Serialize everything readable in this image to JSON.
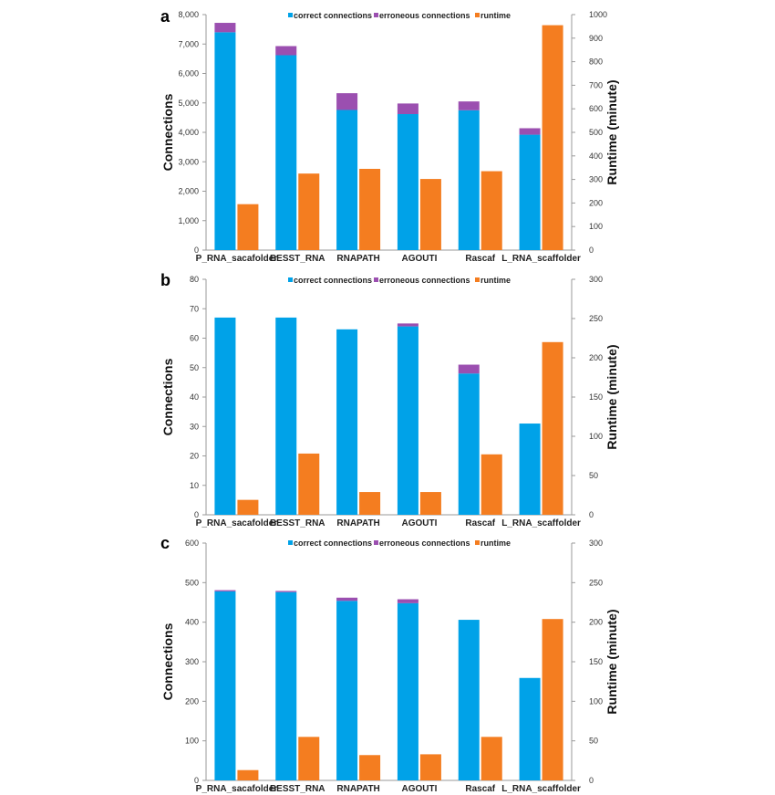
{
  "colors": {
    "correct": "#00a2e8",
    "erroneous": "#9b4fb0",
    "runtime": "#f47d20"
  },
  "chart_data": [
    {
      "type": "bar",
      "panel": "a",
      "categories": [
        "P_RNA_sacafolder",
        "BESST_RNA",
        "RNAPATH",
        "AGOUTI",
        "Rascaf",
        "L_RNA_scaffolder"
      ],
      "ylabel": "Connections",
      "y2label": "Runtime (minute)",
      "ylim": [
        0,
        8000
      ],
      "yticks": [
        0,
        1000,
        2000,
        3000,
        4000,
        5000,
        6000,
        7000,
        8000
      ],
      "ytick_labels": [
        "0",
        "1,000",
        "2,000",
        "3,000",
        "4,000",
        "5,000",
        "6,000",
        "7,000",
        "8,000"
      ],
      "y2lim": [
        0,
        1000
      ],
      "y2ticks": [
        0,
        100,
        200,
        300,
        400,
        500,
        600,
        700,
        800,
        900,
        1000
      ],
      "y2tick_labels": [
        "0",
        "100",
        "200",
        "300",
        "400",
        "500",
        "600",
        "700",
        "800",
        "900",
        "1000"
      ],
      "legend": [
        "correct connections",
        "erroneous connections",
        "runtime"
      ],
      "series": [
        {
          "name": "correct connections",
          "stack": "connections",
          "axis": "left",
          "values": [
            7400,
            6620,
            4760,
            4620,
            4750,
            3920
          ]
        },
        {
          "name": "erroneous connections",
          "stack": "connections",
          "axis": "left",
          "values": [
            320,
            310,
            570,
            360,
            300,
            220
          ]
        },
        {
          "name": "runtime",
          "axis": "right",
          "values": [
            195,
            325,
            345,
            302,
            335,
            955
          ]
        }
      ]
    },
    {
      "type": "bar",
      "panel": "b",
      "categories": [
        "P_RNA_sacafolder",
        "BESST_RNA",
        "RNAPATH",
        "AGOUTI",
        "Rascaf",
        "L_RNA_scaffolder"
      ],
      "ylabel": "Connections",
      "y2label": "Runtime (minute)",
      "ylim": [
        0,
        80
      ],
      "yticks": [
        0,
        10,
        20,
        30,
        40,
        50,
        60,
        70,
        80
      ],
      "ytick_labels": [
        "0",
        "10",
        "20",
        "30",
        "40",
        "50",
        "60",
        "70",
        "80"
      ],
      "y2lim": [
        0,
        300
      ],
      "y2ticks": [
        0,
        50,
        100,
        150,
        200,
        250,
        300
      ],
      "y2tick_labels": [
        "0",
        "50",
        "100",
        "150",
        "200",
        "250",
        "300"
      ],
      "legend": [
        "correct connections",
        "erroneous connections",
        "runtime"
      ],
      "series": [
        {
          "name": "correct connections",
          "stack": "connections",
          "axis": "left",
          "values": [
            67,
            67,
            63,
            64,
            48,
            31
          ]
        },
        {
          "name": "erroneous connections",
          "stack": "connections",
          "axis": "left",
          "values": [
            0,
            0,
            0,
            1,
            3,
            0
          ]
        },
        {
          "name": "runtime",
          "axis": "right",
          "values": [
            19,
            78,
            29,
            29,
            77,
            220
          ]
        }
      ]
    },
    {
      "type": "bar",
      "panel": "c",
      "categories": [
        "P_RNA_sacafolder",
        "BESST_RNA",
        "RNAPATH",
        "AGOUTI",
        "Rascaf",
        "L_RNA_scaffolder"
      ],
      "ylabel": "Connections",
      "y2label": "Runtime (minute)",
      "ylim": [
        0,
        600
      ],
      "yticks": [
        0,
        100,
        200,
        300,
        400,
        500,
        600
      ],
      "ytick_labels": [
        "0",
        "100",
        "200",
        "300",
        "400",
        "500",
        "600"
      ],
      "y2lim": [
        0,
        300
      ],
      "y2ticks": [
        0,
        50,
        100,
        150,
        200,
        250,
        300
      ],
      "y2tick_labels": [
        "0",
        "50",
        "100",
        "150",
        "200",
        "250",
        "300"
      ],
      "legend": [
        "correct connections",
        "erroneous connections",
        "runtime"
      ],
      "series": [
        {
          "name": "correct connections",
          "stack": "connections",
          "axis": "left",
          "values": [
            478,
            476,
            454,
            448,
            406,
            259
          ]
        },
        {
          "name": "erroneous connections",
          "stack": "connections",
          "axis": "left",
          "values": [
            3,
            3,
            8,
            10,
            0,
            0
          ]
        },
        {
          "name": "runtime",
          "axis": "right",
          "values": [
            13,
            55,
            32,
            33,
            55,
            204
          ]
        }
      ]
    }
  ]
}
